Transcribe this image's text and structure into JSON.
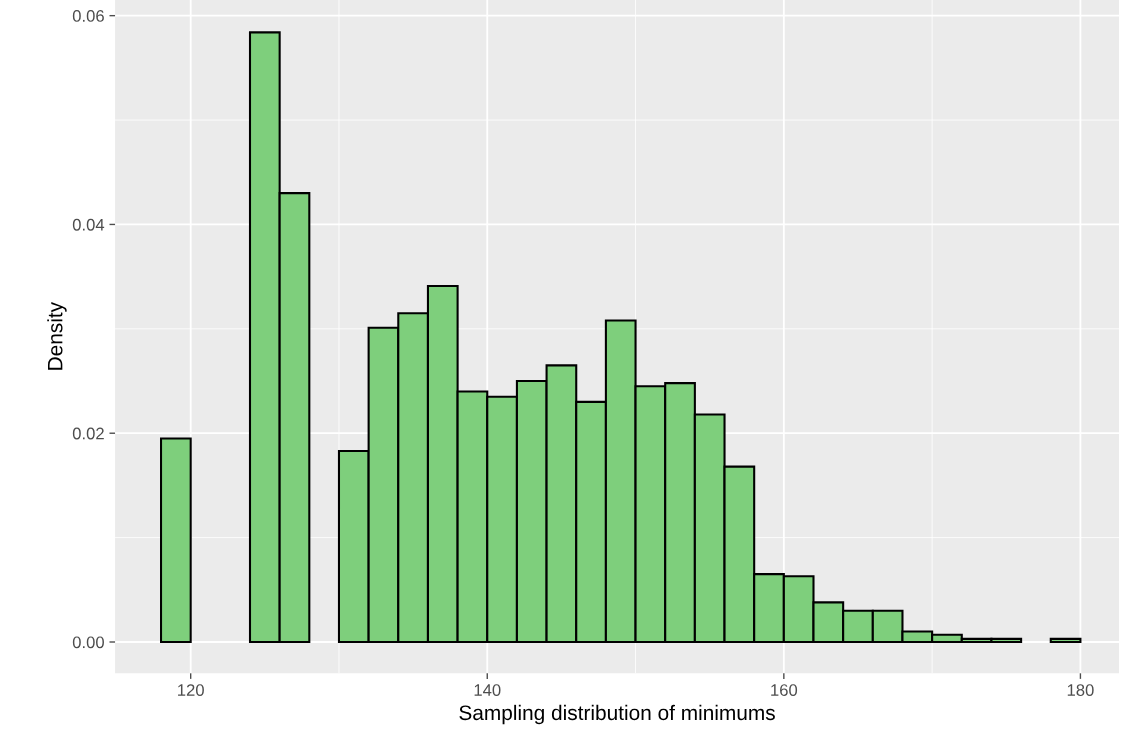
{
  "chart_data": {
    "type": "histogram",
    "xlabel": "Sampling distribution of minimums",
    "ylabel": "Density",
    "bins": [
      118,
      120,
      122,
      124,
      126,
      128,
      130,
      132,
      134,
      136,
      138,
      140,
      142,
      144,
      146,
      148,
      150,
      152,
      154,
      156,
      158,
      160,
      162,
      164,
      166,
      168,
      170,
      172,
      174,
      176,
      178,
      180
    ],
    "values": [
      0.0195,
      0,
      0,
      0.0584,
      0.043,
      0,
      0.0183,
      0.0301,
      0.0315,
      0.0341,
      0.024,
      0.0235,
      0.025,
      0.0265,
      0.023,
      0.0308,
      0.0245,
      0.0248,
      0.0218,
      0.0168,
      0.0065,
      0.0063,
      0.0038,
      0.003,
      0.003,
      0.001,
      0.0007,
      0.0003,
      0.0003,
      0,
      0.0003
    ],
    "color": "#7ecf7c",
    "xlim": [
      114.9,
      182.6
    ],
    "ylim": [
      -0.003,
      0.0615
    ],
    "xticks": [
      120,
      140,
      160,
      180
    ],
    "yticks": [
      {
        "value": 0,
        "label": "0.00"
      },
      {
        "value": 0.02,
        "label": "0.02"
      },
      {
        "value": 0.04,
        "label": "0.04"
      },
      {
        "value": 0.06,
        "label": "0.06"
      }
    ],
    "grid": true
  }
}
